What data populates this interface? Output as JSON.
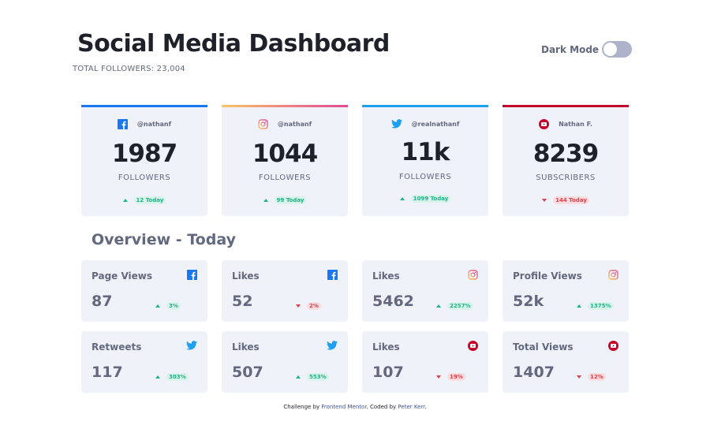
{
  "header": {
    "title": "Social Media Dashboard",
    "total_followers": "TOTAL FOLLOWERS: 23,004",
    "dark_mode_label": "Dark Mode"
  },
  "colors": {
    "facebook": "#1877f2",
    "twitter": "#1da0f2",
    "youtube": "#c4032a",
    "up": "#1db489",
    "down": "#dc414c"
  },
  "cards": [
    {
      "platform": "facebook",
      "icon": "facebook-icon",
      "handle": "@nathanf",
      "count": "1987",
      "unit": "FOLLOWERS",
      "change": "12 Today",
      "direction": "up"
    },
    {
      "platform": "instagram",
      "icon": "instagram-icon",
      "handle": "@nathanf",
      "count": "1044",
      "unit": "FOLLOWERS",
      "change": "99 Today",
      "direction": "up"
    },
    {
      "platform": "twitter",
      "icon": "twitter-icon",
      "handle": "@realnathanf",
      "count": "11k",
      "unit": "FOLLOWERS",
      "change": "1099 Today",
      "direction": "up"
    },
    {
      "platform": "youtube",
      "icon": "youtube-icon",
      "handle": "Nathan F.",
      "count": "8239",
      "unit": "SUBSCRIBERS",
      "change": "144 Today",
      "direction": "down"
    }
  ],
  "overview": {
    "title": "Overview - Today",
    "items": [
      {
        "label": "Page Views",
        "icon": "facebook-icon",
        "value": "87",
        "change": "3%",
        "direction": "up"
      },
      {
        "label": "Likes",
        "icon": "facebook-icon",
        "value": "52",
        "change": "2%",
        "direction": "down"
      },
      {
        "label": "Likes",
        "icon": "instagram-icon",
        "value": "5462",
        "change": "2257%",
        "direction": "up"
      },
      {
        "label": "Profile Views",
        "icon": "instagram-icon",
        "value": "52k",
        "change": "1375%",
        "direction": "up"
      },
      {
        "label": "Retweets",
        "icon": "twitter-icon",
        "value": "117",
        "change": "303%",
        "direction": "up"
      },
      {
        "label": "Likes",
        "icon": "twitter-icon",
        "value": "507",
        "change": "553%",
        "direction": "up"
      },
      {
        "label": "Likes",
        "icon": "youtube-icon",
        "value": "107",
        "change": "19%",
        "direction": "down"
      },
      {
        "label": "Total Views",
        "icon": "youtube-icon",
        "value": "1407",
        "change": "12%",
        "direction": "down"
      }
    ]
  },
  "footer": {
    "prefix": "Challenge by ",
    "challenge_link": "Frontend Mentor",
    "middle": ". Coded by ",
    "author_link": "Peter Kerr",
    "suffix": "."
  }
}
